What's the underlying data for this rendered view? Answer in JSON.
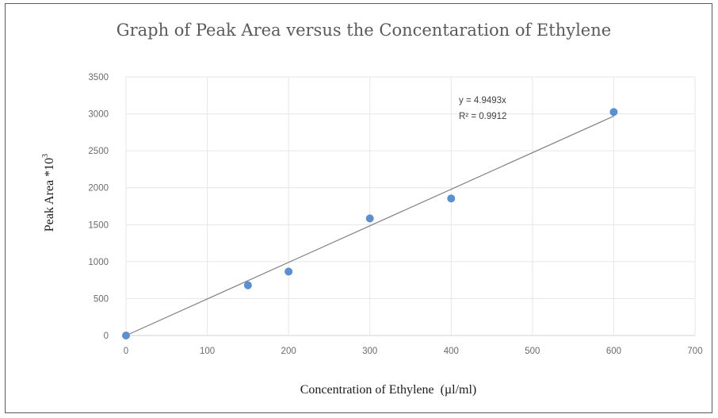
{
  "chart_data": {
    "type": "scatter",
    "title": "Graph of Peak Area versus the Concentaration of Ethylene",
    "xlabel": "Concentration of Ethylene  (µl/ml)",
    "ylabel": "Peak Area *10",
    "ylabel_sup": "3",
    "xlim": [
      0,
      700
    ],
    "ylim": [
      0,
      3500
    ],
    "xticks": [
      0,
      100,
      200,
      300,
      400,
      500,
      600,
      700
    ],
    "yticks": [
      0,
      500,
      1000,
      1500,
      2000,
      2500,
      3000,
      3500
    ],
    "grid": true,
    "series": [
      {
        "x": [
          0,
          150,
          200,
          300,
          400,
          600
        ],
        "y": [
          0,
          680,
          865,
          1585,
          1855,
          3025
        ],
        "color": "#5b8fd0"
      }
    ],
    "trendline": {
      "slope": 4.9493,
      "intercept": 0,
      "x_range": [
        0,
        600
      ],
      "color": "#808080",
      "equation": "y = 4.9493x",
      "r_squared": "R² = 0.9912"
    }
  }
}
